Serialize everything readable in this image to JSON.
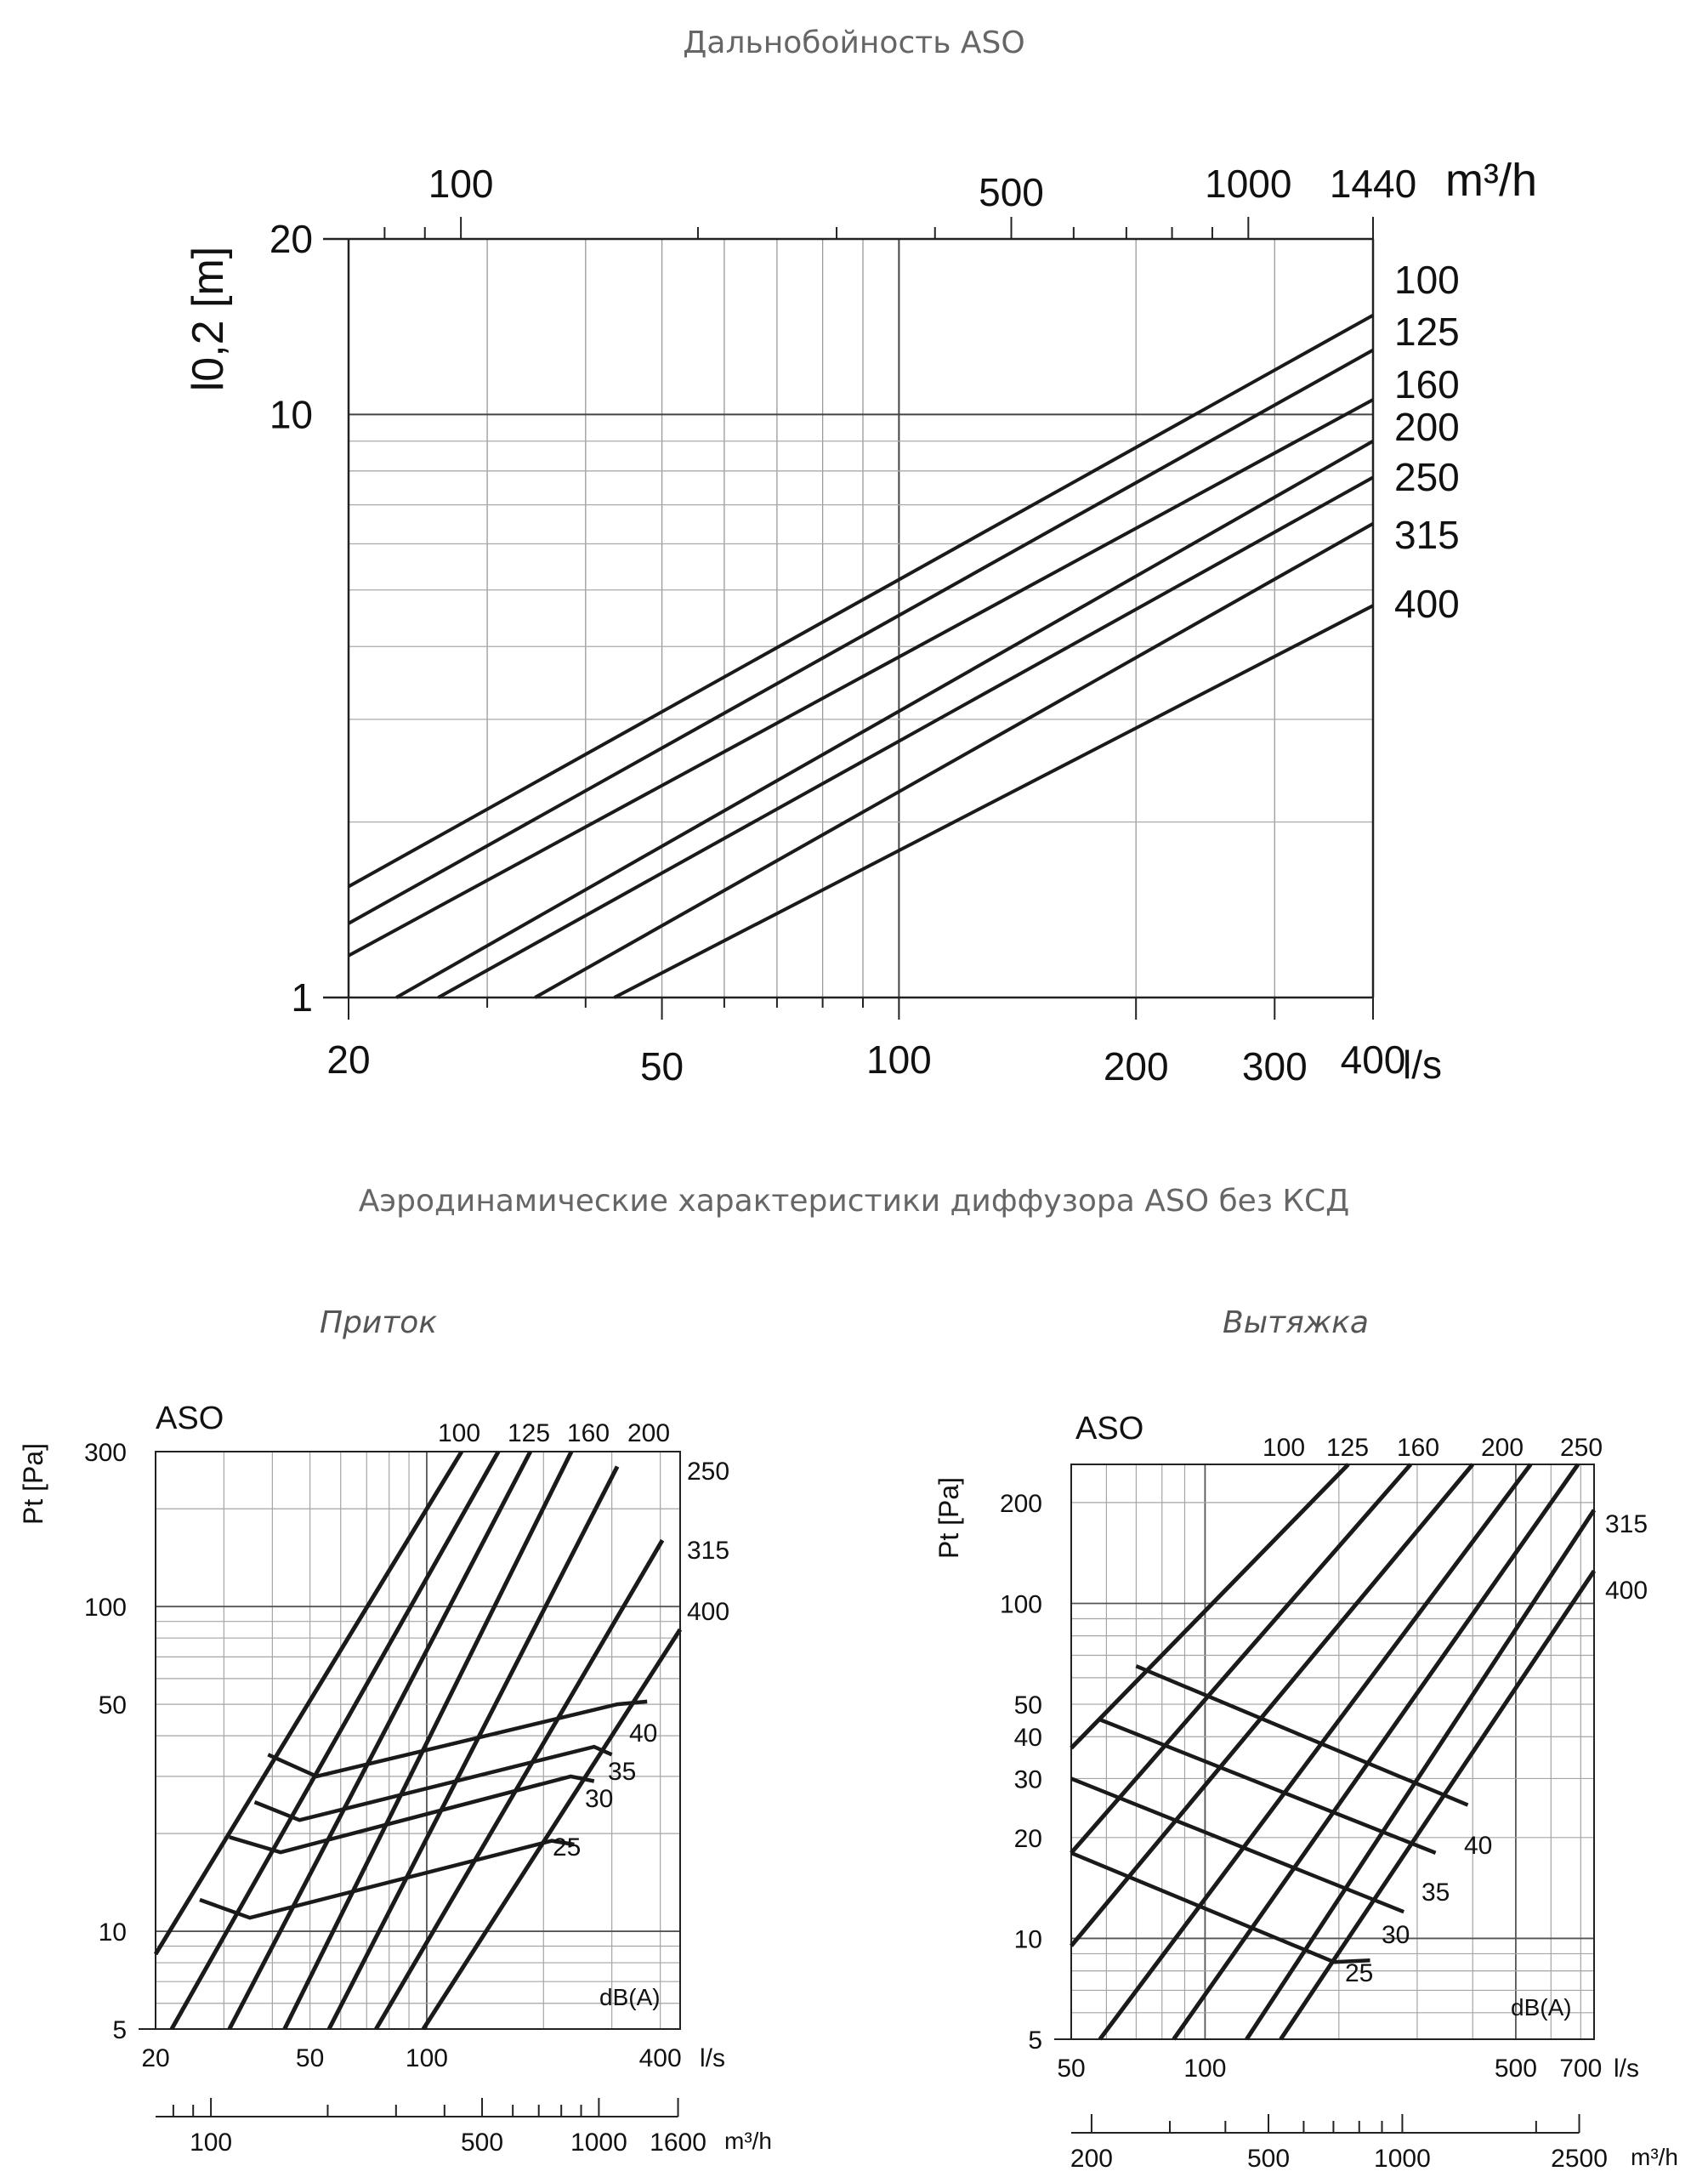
{
  "captions": {
    "range": "Дальнобойность ASO",
    "aero": "Аэродинамические характеристики диффузора ASO без КСД",
    "supply": "Приток",
    "exhaust": "Вытяжка"
  },
  "chart_data": [
    {
      "type": "line",
      "scale": "log-log",
      "grid": true,
      "ylabel": "l0,2 [m]",
      "xlabel": "l/s",
      "x2label": "m³/h",
      "x_ticks": [
        "20",
        "50",
        "100",
        "200",
        "300",
        "400"
      ],
      "x2_ticks": [
        "100",
        "500",
        "1000",
        "1440"
      ],
      "y_ticks": [
        "1",
        "10",
        "20"
      ],
      "xlim": [
        20,
        400
      ],
      "ylim": [
        1,
        20
      ],
      "series": [
        {
          "name": "100",
          "x": [
            20,
            400
          ],
          "y": [
            1.55,
            14.8
          ]
        },
        {
          "name": "125",
          "x": [
            20,
            400
          ],
          "y": [
            1.34,
            12.9
          ]
        },
        {
          "name": "160",
          "x": [
            20,
            400
          ],
          "y": [
            1.18,
            10.6
          ]
        },
        {
          "name": "200",
          "x": [
            23,
            400
          ],
          "y": [
            1.0,
            9.0
          ]
        },
        {
          "name": "250",
          "x": [
            26,
            400
          ],
          "y": [
            1.0,
            7.8
          ]
        },
        {
          "name": "315",
          "x": [
            34.5,
            400
          ],
          "y": [
            1.0,
            6.5
          ]
        },
        {
          "name": "400",
          "x": [
            43.5,
            400
          ],
          "y": [
            1.0,
            4.7
          ]
        }
      ]
    },
    {
      "type": "line",
      "scale": "log-log",
      "grid": true,
      "title": "ASO",
      "ylabel": "Pt [Pa]",
      "xlabel": "l/s",
      "x2label": "m³/h",
      "note": "dB(A)",
      "x_ticks": [
        "20",
        "50",
        "100",
        "400"
      ],
      "x2_ticks": [
        "100",
        "500",
        "1000",
        "1600"
      ],
      "y_ticks": [
        "5",
        "10",
        "50",
        "100",
        "300"
      ],
      "xlim": [
        20,
        450
      ],
      "ylim": [
        5,
        300
      ],
      "series": [
        {
          "name": "100",
          "x": [
            20,
            123
          ],
          "y": [
            8.5,
            300
          ]
        },
        {
          "name": "125",
          "x": [
            22,
            153
          ],
          "y": [
            5,
            300
          ]
        },
        {
          "name": "160",
          "x": [
            31,
            185
          ],
          "y": [
            5,
            300
          ]
        },
        {
          "name": "200",
          "x": [
            43,
            236
          ],
          "y": [
            5,
            300
          ]
        },
        {
          "name": "250",
          "x": [
            56,
            310
          ],
          "y": [
            5,
            270
          ]
        },
        {
          "name": "315",
          "x": [
            74,
            405
          ],
          "y": [
            5,
            160
          ]
        },
        {
          "name": "400",
          "x": [
            98,
            450
          ],
          "y": [
            5,
            85
          ]
        }
      ],
      "sound_lines": [
        {
          "name": "40",
          "x": [
            39,
            52,
            310,
            370
          ],
          "y": [
            35,
            30,
            50,
            51
          ]
        },
        {
          "name": "35",
          "x": [
            36,
            47,
            270,
            300
          ],
          "y": [
            25,
            22,
            37,
            35
          ]
        },
        {
          "name": "30",
          "x": [
            31,
            42,
            235,
            270
          ],
          "y": [
            19.5,
            17.5,
            30,
            29
          ]
        },
        {
          "name": "25",
          "x": [
            26,
            35,
            210,
            240
          ],
          "y": [
            12.5,
            11,
            19,
            18.5
          ]
        }
      ]
    },
    {
      "type": "line",
      "scale": "log-log",
      "grid": true,
      "title": "ASO",
      "ylabel": "Pt [Pa]",
      "xlabel": "l/s",
      "x2label": "m³/h",
      "note": "dB(A)",
      "x_ticks": [
        "50",
        "100",
        "500",
        "700"
      ],
      "x2_ticks": [
        "200",
        "500",
        "1000",
        "2500"
      ],
      "y_ticks": [
        "5",
        "10",
        "20",
        "30",
        "40",
        "50",
        "100",
        "200"
      ],
      "xlim": [
        50,
        750
      ],
      "ylim": [
        5,
        260
      ],
      "series": [
        {
          "name": "100",
          "x": [
            50,
            210
          ],
          "y": [
            37,
            260
          ]
        },
        {
          "name": "125",
          "x": [
            50,
            290
          ],
          "y": [
            18,
            260
          ]
        },
        {
          "name": "160",
          "x": [
            50,
            400
          ],
          "y": [
            9.5,
            260
          ]
        },
        {
          "name": "200",
          "x": [
            58,
            540
          ],
          "y": [
            5,
            260
          ]
        },
        {
          "name": "250",
          "x": [
            85,
            690
          ],
          "y": [
            5,
            260
          ]
        },
        {
          "name": "315",
          "x": [
            124,
            750
          ],
          "y": [
            5,
            190
          ]
        },
        {
          "name": "400",
          "x": [
            148,
            750
          ],
          "y": [
            5,
            125
          ]
        }
      ],
      "sound_lines": [
        {
          "name": "40",
          "x": [
            70,
            390
          ],
          "y": [
            65,
            25
          ]
        },
        {
          "name": "35",
          "x": [
            58,
            330
          ],
          "y": [
            45,
            18
          ]
        },
        {
          "name": "30",
          "x": [
            50,
            280
          ],
          "y": [
            30,
            12
          ]
        },
        {
          "name": "25",
          "x": [
            50,
            195,
            235
          ],
          "y": [
            18,
            8.5,
            8.6
          ]
        }
      ]
    }
  ]
}
